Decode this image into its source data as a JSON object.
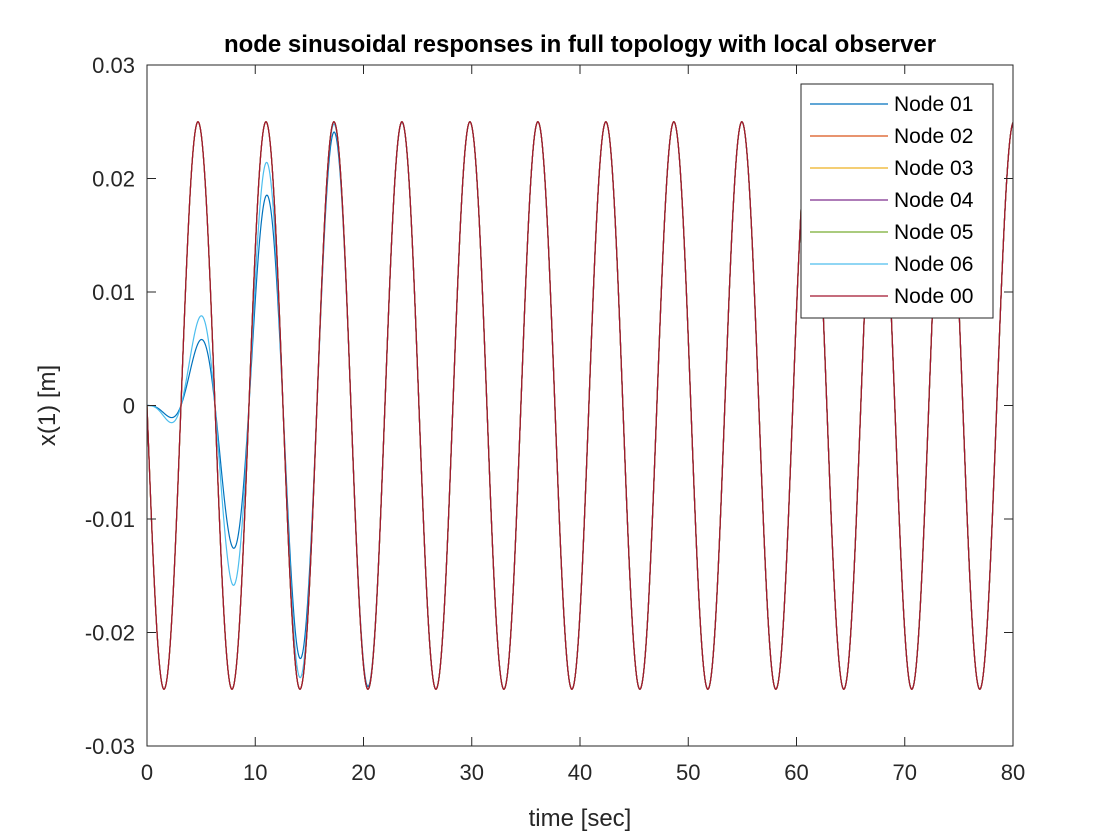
{
  "chart_data": {
    "type": "line",
    "title": "node sinusoidal responses in full topology with local observer",
    "xlabel": "time [sec]",
    "ylabel": "x(1) [m]",
    "xlim": [
      0,
      80
    ],
    "ylim": [
      -0.03,
      0.03
    ],
    "xticks": [
      0,
      10,
      20,
      30,
      40,
      50,
      60,
      70,
      80
    ],
    "xtick_labels": [
      "0",
      "10",
      "20",
      "30",
      "40",
      "50",
      "60",
      "70",
      "80"
    ],
    "yticks": [
      -0.03,
      -0.02,
      -0.01,
      0,
      0.01,
      0.02,
      0.03
    ],
    "ytick_labels": [
      "-0.03",
      "-0.02",
      "-0.01",
      "0",
      "0.01",
      "0.02",
      "0.03"
    ],
    "grid": false,
    "legend_position": "top-right",
    "reference_signal": {
      "amplitude": 0.025,
      "period": 6.28,
      "phase": "-sin"
    },
    "series": [
      {
        "name": "Node 01",
        "color": "#0072BD",
        "role": "follower",
        "converge_tau": 9.0
      },
      {
        "name": "Node 02",
        "color": "#D95319",
        "role": "reference"
      },
      {
        "name": "Node 03",
        "color": "#EDB120",
        "role": "reference"
      },
      {
        "name": "Node 04",
        "color": "#7E2F8E",
        "role": "reference"
      },
      {
        "name": "Node 05",
        "color": "#77AC30",
        "role": "reference"
      },
      {
        "name": "Node 06",
        "color": "#4DBEEE",
        "role": "follower",
        "converge_tau": 7.5
      },
      {
        "name": "Node 00",
        "color": "#A2142F",
        "role": "reference"
      }
    ]
  }
}
